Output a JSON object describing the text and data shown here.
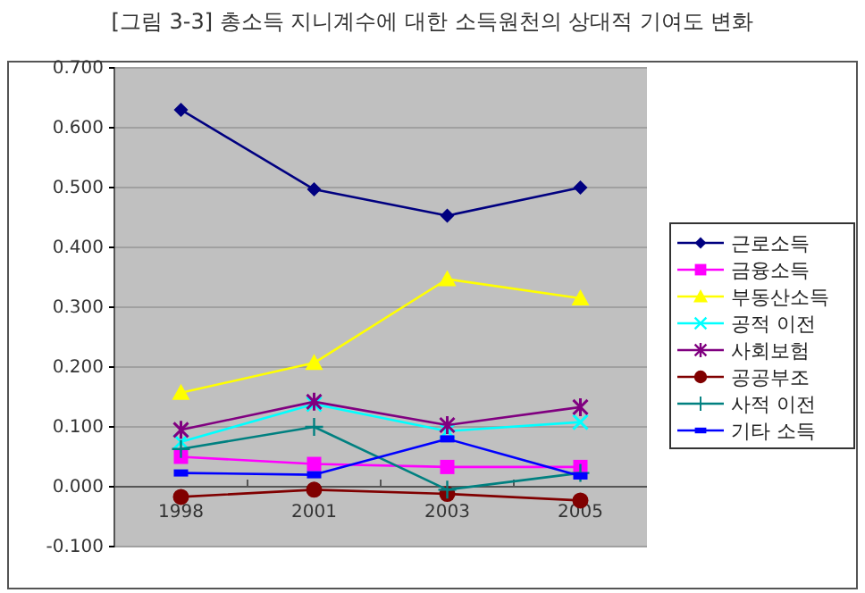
{
  "chart_data": {
    "type": "line",
    "title": "[그림 3-3] 총소득 지니계수에 대한 소득원천의 상대적 기여도 변화",
    "categories": [
      "1998",
      "2001",
      "2003",
      "2005"
    ],
    "series": [
      {
        "name": "근로소득",
        "color": "#000080",
        "marker": "diamond",
        "values": [
          0.63,
          0.497,
          0.453,
          0.5
        ]
      },
      {
        "name": "금융소득",
        "color": "#ff00ff",
        "marker": "square",
        "values": [
          0.05,
          0.038,
          0.033,
          0.033
        ]
      },
      {
        "name": "부동산소득",
        "color": "#ffff00",
        "marker": "triangle",
        "values": [
          0.157,
          0.207,
          0.347,
          0.315
        ]
      },
      {
        "name": "공적 이전",
        "color": "#00ffff",
        "marker": "cross",
        "values": [
          0.075,
          0.138,
          0.093,
          0.108
        ]
      },
      {
        "name": "사회보험",
        "color": "#800080",
        "marker": "cross",
        "values": [
          0.095,
          0.142,
          0.103,
          0.133
        ]
      },
      {
        "name": "공공부조",
        "color": "#800000",
        "marker": "circle",
        "values": [
          -0.017,
          -0.005,
          -0.012,
          -0.023
        ]
      },
      {
        "name": "사적 이전",
        "color": "#008080",
        "marker": "plus",
        "values": [
          0.063,
          0.1,
          -0.005,
          0.023
        ]
      },
      {
        "name": "기타 소득",
        "color": "#0000ff",
        "marker": "square",
        "values": [
          0.023,
          0.02,
          0.08,
          0.018
        ]
      }
    ],
    "ylim": [
      -0.1,
      0.7
    ],
    "yticks": [
      {
        "value": -0.1,
        "label": "-0.100"
      },
      {
        "value": 0,
        "label": "0.000"
      },
      {
        "value": 0.1,
        "label": "0.100"
      },
      {
        "value": 0.2,
        "label": "0.200"
      },
      {
        "value": 0.3,
        "label": "0.300"
      },
      {
        "value": 0.4,
        "label": "0.400"
      },
      {
        "value": 0.5,
        "label": "0.500"
      },
      {
        "value": 0.6,
        "label": "0.600"
      },
      {
        "value": 0.7,
        "label": "0.700"
      }
    ],
    "grid": "y",
    "legend": "right"
  }
}
